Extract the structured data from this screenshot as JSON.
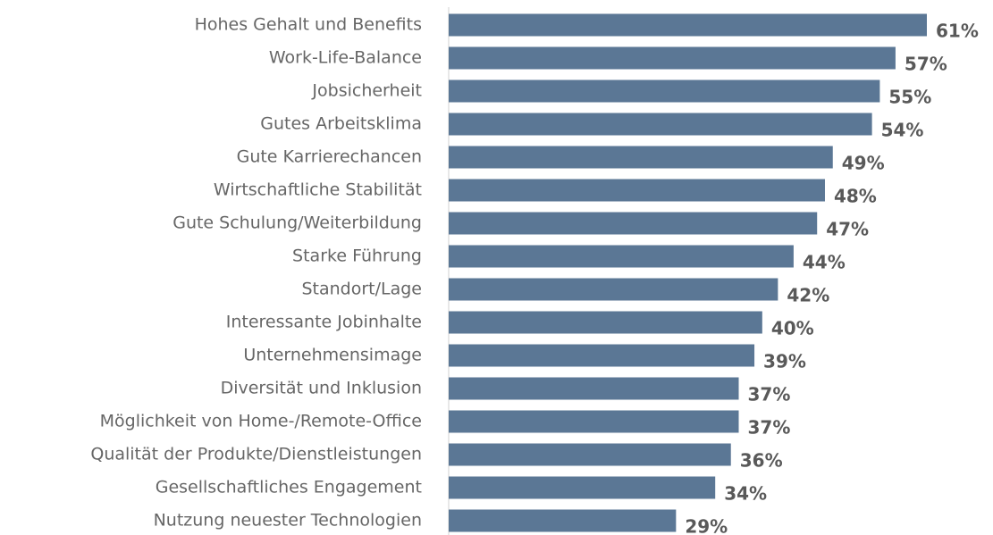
{
  "chart_data": {
    "type": "bar",
    "orientation": "horizontal",
    "categories": [
      "Hohes Gehalt und Benefits",
      "Work-Life-Balance",
      "Jobsicherheit",
      "Gutes Arbeitsklima",
      "Gute Karrierechancen",
      "Wirtschaftliche Stabilität",
      "Gute Schulung/Weiterbildung",
      "Starke Führung",
      "Standort/Lage",
      "Interessante Jobinhalte",
      "Unternehmensimage",
      "Diversität und Inklusion",
      "Möglichkeit von Home-/Remote-Office",
      "Qualität der Produkte/Dienstleistungen",
      "Gesellschaftliches Engagement",
      "Nutzung neuester Technologien"
    ],
    "values": [
      61,
      57,
      55,
      54,
      49,
      48,
      47,
      44,
      42,
      40,
      39,
      37,
      37,
      36,
      34,
      29
    ],
    "value_labels": [
      "61%",
      "57%",
      "55%",
      "54%",
      "49%",
      "48%",
      "47%",
      "44%",
      "42%",
      "40%",
      "39%",
      "37%",
      "37%",
      "36%",
      "34%",
      "29%"
    ],
    "color": "#5b7795"
  }
}
